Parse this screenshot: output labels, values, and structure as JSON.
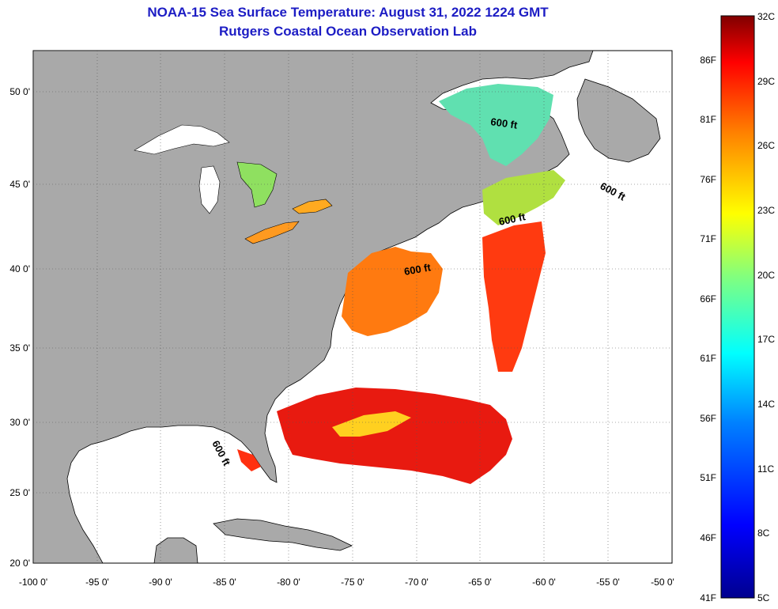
{
  "header": {
    "title": "NOAA-15 Sea Surface Temperature:  August 31, 2022 1224 GMT",
    "subtitle": "Rutgers Coastal Ocean Observation Lab"
  },
  "map": {
    "lon_range": [
      -100,
      -50
    ],
    "lat_range": [
      20,
      52.5
    ],
    "lon_ticks": [
      "-100 0'",
      "-95 0'",
      "-90 0'",
      "-85 0'",
      "-80 0'",
      "-75 0'",
      "-70 0'",
      "-65 0'",
      "-60 0'",
      "-55 0'",
      "-50 0'"
    ],
    "lat_ticks": [
      "20 0'",
      "25 0'",
      "30 0'",
      "35 0'",
      "40 0'",
      "45 0'",
      "50 0'"
    ],
    "depth_contour_label": "600 ft",
    "land_color": "#a9a9a9",
    "ocean_nodata_color": "#ffffff"
  },
  "colorbar": {
    "celsius": [
      "5C",
      "8C",
      "11C",
      "14C",
      "17C",
      "20C",
      "23C",
      "26C",
      "29C",
      "32C"
    ],
    "fahrenheit": [
      "41F",
      "46F",
      "51F",
      "56F",
      "61F",
      "66F",
      "71F",
      "76F",
      "81F",
      "86F"
    ],
    "colors": [
      "#00008f",
      "#0000ff",
      "#0080ff",
      "#00ffff",
      "#80ff80",
      "#ffff00",
      "#ff8000",
      "#ff0000",
      "#800000"
    ]
  }
}
